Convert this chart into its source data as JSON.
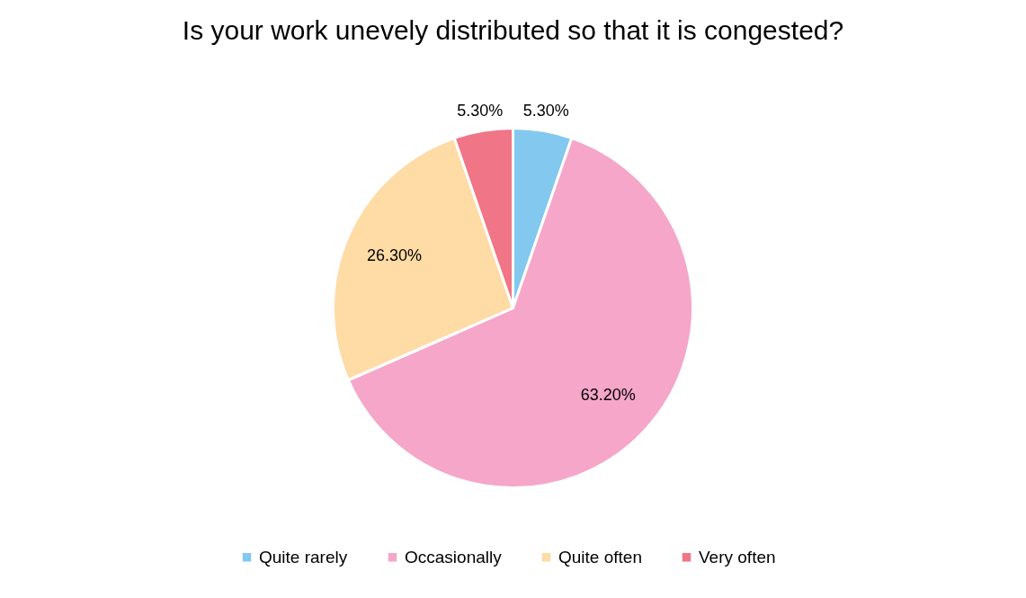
{
  "chart_data": {
    "type": "pie",
    "title": "Is your work unevely distributed so that it is congested?",
    "categories": [
      "Quite rarely",
      "Occasionally",
      "Quite often",
      "Very often"
    ],
    "values": [
      5.3,
      63.2,
      26.3,
      5.3
    ],
    "colors": [
      "#83c8ee",
      "#f5a6c9",
      "#ffdba6",
      "#f07586"
    ],
    "value_labels": [
      "5.30%",
      "63.20%",
      "26.30%",
      "5.30%"
    ],
    "legend": "bottom"
  }
}
